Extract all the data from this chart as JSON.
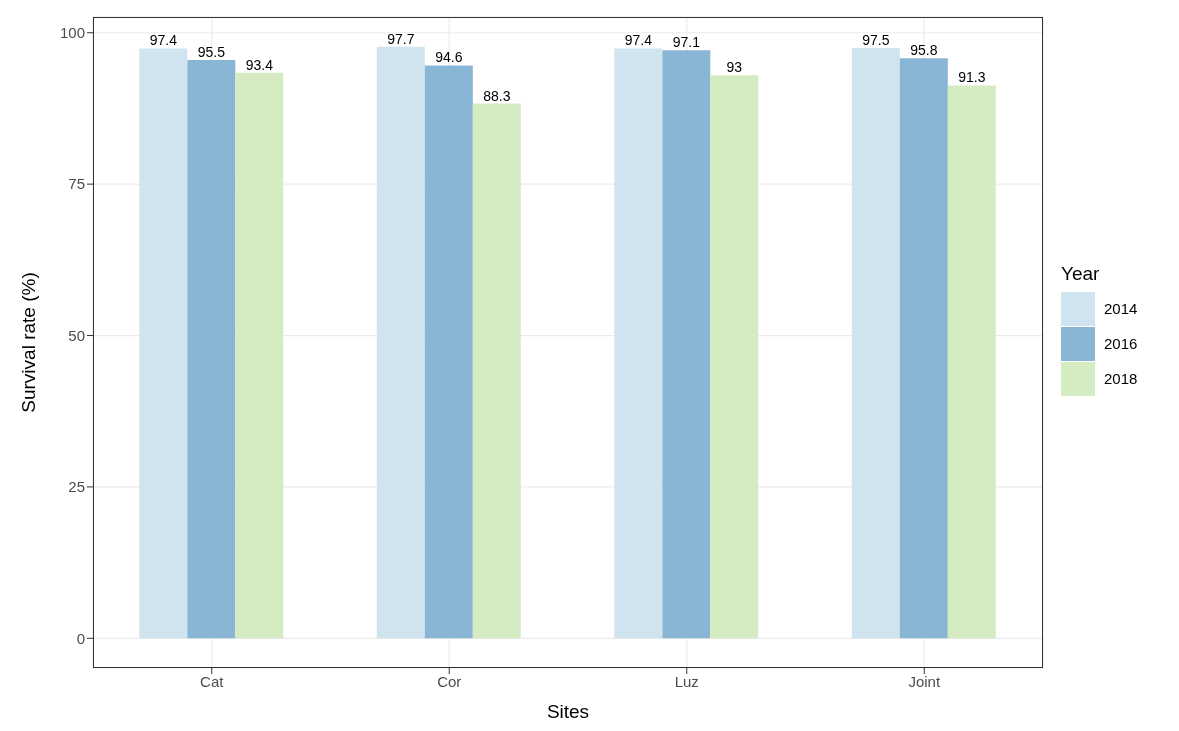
{
  "chart_data": {
    "type": "bar",
    "xlabel": "Sites",
    "ylabel": "Survival rate (%)",
    "legend_title": "Year",
    "categories": [
      "Cat",
      "Cor",
      "Luz",
      "Joint"
    ],
    "series": [
      {
        "name": "2014",
        "color": "#d0e4f0",
        "values": [
          97.4,
          97.7,
          97.4,
          97.5
        ]
      },
      {
        "name": "2016",
        "color": "#8ab6d6",
        "values": [
          95.5,
          94.6,
          97.1,
          95.8
        ]
      },
      {
        "name": "2018",
        "color": "#d5ecc3",
        "values": [
          93.4,
          88.3,
          93,
          91.3
        ]
      }
    ],
    "ylim": [
      -4.9,
      102.6
    ],
    "yticks": [
      0,
      25,
      50,
      75,
      100
    ],
    "grid": true,
    "legend": "right",
    "data_labels": true
  }
}
